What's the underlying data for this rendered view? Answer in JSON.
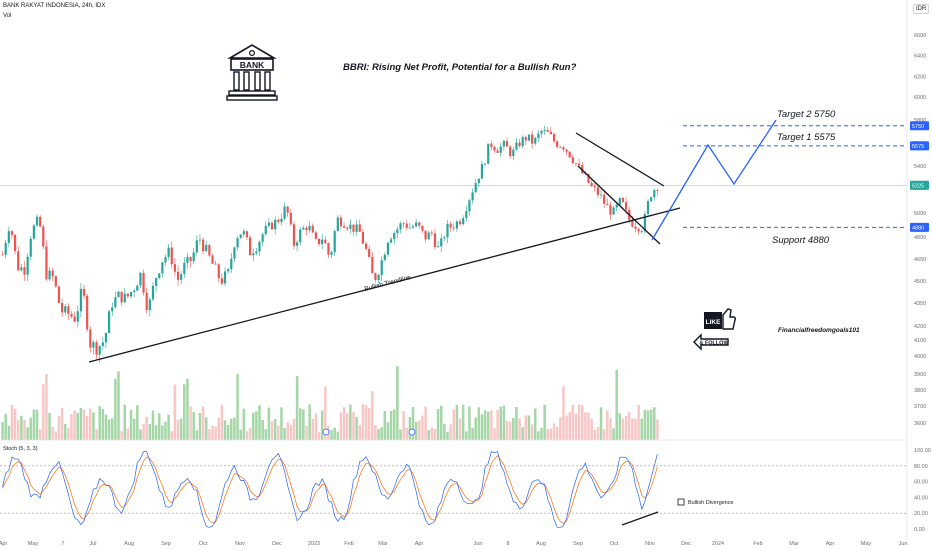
{
  "header": {
    "symbol": "BANK RAKYAT INDONESIA, 24h, IDX",
    "volume_label": "Vol",
    "currency": "IDR"
  },
  "title": "BBRI: Rising Net Profit, Potential for a Bullish Run?",
  "bank_icon_label": "BANK",
  "like_follow": {
    "like": "LIKE",
    "follow": "& FOLLOW"
  },
  "author": "Financialfreedomgoals101",
  "colors": {
    "bull": "#26a69a",
    "bear": "#ef5350",
    "accent": "#2962ff",
    "stoch_k": "#2962ff",
    "stoch_d": "#ff6d00"
  },
  "chart_data": {
    "type": "candlestick",
    "price_axis": {
      "ylim": [
        3500,
        6850
      ],
      "ticks": [
        6600,
        6400,
        6200,
        6000,
        5800,
        5600,
        5400,
        5200,
        5000,
        4800,
        4650,
        4500,
        4350,
        4200,
        4100,
        4000,
        3900,
        3800,
        3700,
        3600
      ]
    },
    "x_ticks": [
      "Apr",
      "May",
      "7",
      "Jul",
      "Aug",
      "Sep",
      "Oct",
      "Nov",
      "Dec",
      "2023",
      "Feb",
      "Mar",
      "Apr",
      "Jun",
      "8",
      "Aug",
      "Sep",
      "Oct",
      "Nov",
      "Dec",
      "2024",
      "Feb",
      "Mar",
      "Apr",
      "May",
      "Jun"
    ],
    "price_path": [
      [
        4680,
        4920
      ],
      [
        4600,
        4580
      ],
      [
        4850,
        4950
      ],
      [
        4550,
        4520
      ],
      [
        4300,
        4280
      ],
      [
        4250,
        4450
      ],
      [
        4080,
        4050
      ],
      [
        4100,
        4350
      ],
      [
        4400,
        4380
      ],
      [
        4450,
        4550
      ],
      [
        4300,
        4520
      ],
      [
        4650,
        4700
      ],
      [
        4500,
        4600
      ],
      [
        4650,
        4800
      ],
      [
        4700,
        4600
      ],
      [
        4500,
        4550
      ],
      [
        4800,
        4850
      ],
      [
        4700,
        4750
      ],
      [
        4850,
        4900
      ],
      [
        4950,
        5050
      ],
      [
        4750,
        4850
      ],
      [
        4900,
        4750
      ],
      [
        4800,
        4650
      ],
      [
        4950,
        4920
      ],
      [
        4880,
        4850
      ],
      [
        4700,
        4500
      ],
      [
        4620,
        4800
      ],
      [
        4850,
        4920
      ],
      [
        4880,
        4900
      ],
      [
        4800,
        4830
      ],
      [
        4700,
        4870
      ],
      [
        4900,
        4950
      ],
      [
        5100,
        5250
      ],
      [
        5400,
        5600
      ],
      [
        5550,
        5580
      ],
      [
        5500,
        5600
      ],
      [
        5650,
        5600
      ],
      [
        5700,
        5680
      ],
      [
        5600,
        5580
      ],
      [
        5500,
        5400
      ],
      [
        5300,
        5200
      ],
      [
        5150,
        5050
      ],
      [
        5000,
        5100
      ],
      [
        4950,
        4900
      ],
      [
        4880,
        5150
      ],
      [
        5225
      ]
    ],
    "price_labels": [
      {
        "text": "5750",
        "value": 5750
      },
      {
        "text": "5575",
        "value": 5575
      },
      {
        "text": "5225",
        "value": 5225
      },
      {
        "text": "4880",
        "value": 4880
      }
    ],
    "annotations": {
      "target2": "Target 2  5750",
      "target1": "Target 1  5575",
      "support": "Support 4880",
      "trendline": "Bullish Trendline",
      "divergence": "Bullish Divergence"
    },
    "levels": {
      "target2": 5750,
      "target1": 5575,
      "current": 5225,
      "support": 4880
    },
    "stoch": {
      "label": "Stoch (5, 3, 3)",
      "ylim": [
        0,
        100
      ],
      "ticks": [
        "100.00",
        "80.00",
        "60.00",
        "40.00",
        "20.00",
        "0.00"
      ],
      "bands": [
        80,
        20
      ]
    }
  }
}
